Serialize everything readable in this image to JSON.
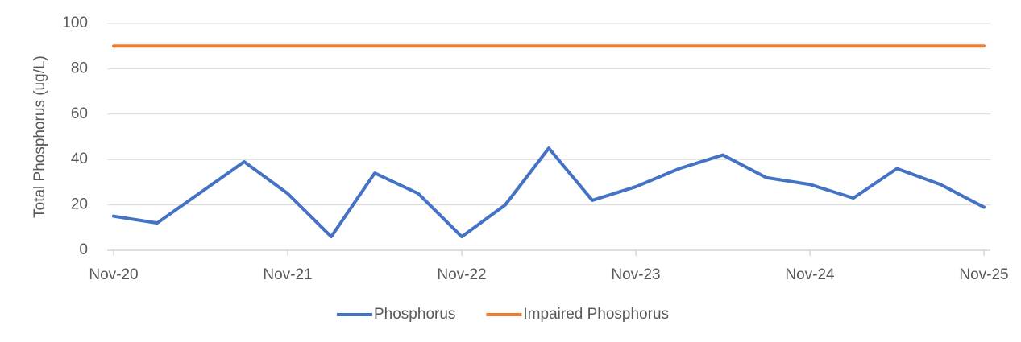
{
  "chart_data": {
    "type": "line",
    "y_label": "Total Phosphorus (ug/L)",
    "x": [
      "Nov-20",
      null,
      null,
      null,
      "Nov-21",
      null,
      null,
      null,
      "Nov-22",
      null,
      null,
      null,
      "Nov-23",
      null,
      null,
      null,
      "Nov-24",
      null,
      null,
      null,
      "Nov-25"
    ],
    "series": [
      {
        "name": "Phosphorus",
        "color": "#4472c4",
        "values": [
          15,
          12,
          25.5,
          39,
          25,
          6,
          34,
          25,
          6,
          20,
          45,
          22,
          28,
          36,
          42,
          32,
          29,
          23,
          36,
          29,
          19
        ]
      },
      {
        "name": "Impaired Phosphorus",
        "color": "#ed7d31",
        "values": [
          90,
          90,
          90,
          90,
          90,
          90,
          90,
          90,
          90,
          90,
          90,
          90,
          90,
          90,
          90,
          90,
          90,
          90,
          90,
          90,
          90
        ]
      }
    ],
    "ylim": [
      0,
      100
    ],
    "yticks": [
      0,
      20,
      40,
      60,
      80,
      100
    ],
    "grid": true,
    "legend": "bottom"
  }
}
